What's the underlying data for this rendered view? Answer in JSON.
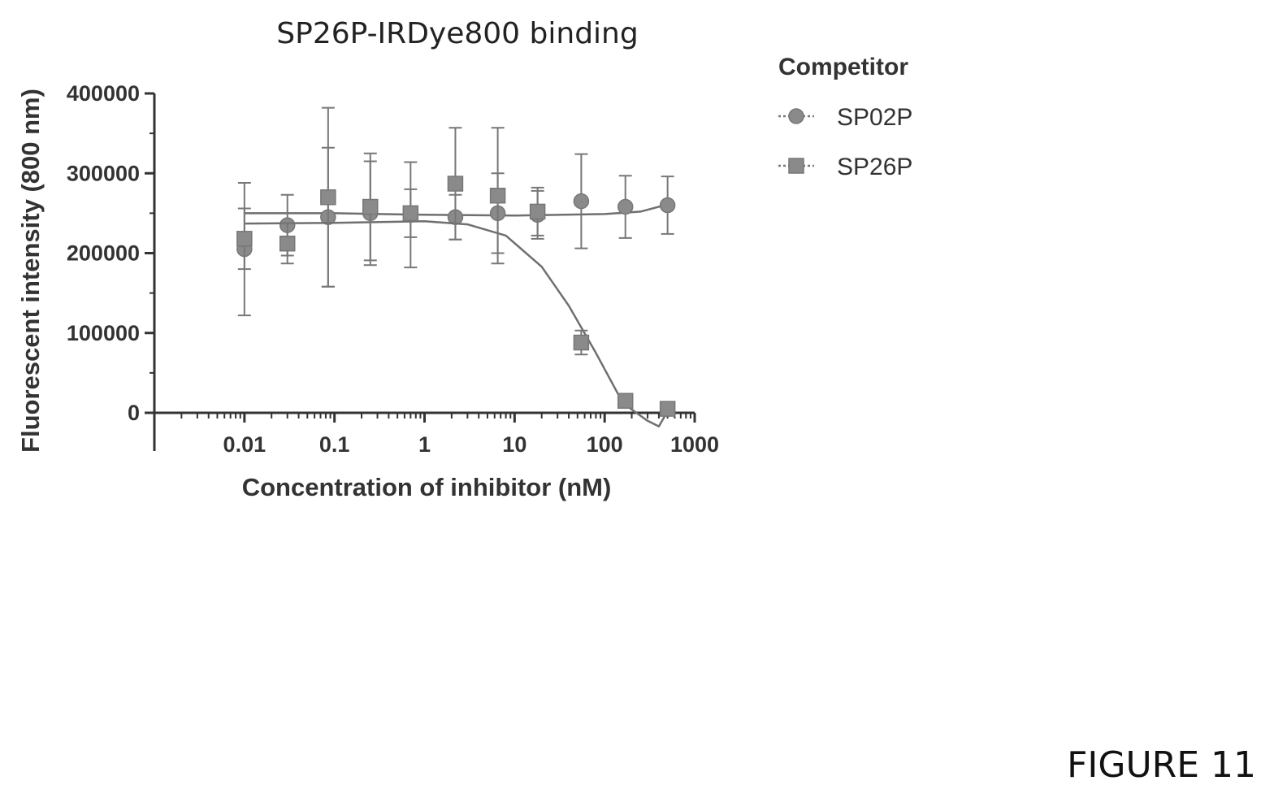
{
  "figure_label": "FIGURE 11",
  "chart_data": {
    "type": "scatter",
    "title": "SP26P-IRDye800 binding",
    "xlabel": "Concentration of inhibitor  (nM)",
    "ylabel": "Fluorescent intensity  (800 nm)",
    "x_scale": "log",
    "xlim": [
      0.001,
      1000
    ],
    "ylim": [
      0,
      400000
    ],
    "x_ticks": [
      0.01,
      0.1,
      1,
      10,
      100,
      1000
    ],
    "x_tick_labels": [
      "0.01",
      "0.1",
      "1",
      "10",
      "100",
      "1000"
    ],
    "y_ticks": [
      0,
      100000,
      200000,
      300000,
      400000
    ],
    "y_tick_labels": [
      "0",
      "100000",
      "200000",
      "300000",
      "400000"
    ],
    "grid": false,
    "legend_title": "Competitor",
    "legend_position": "right",
    "series": [
      {
        "name": "SP02P",
        "marker": "circle",
        "color": "#8a8a8a",
        "points": [
          {
            "x": 0.01,
            "y": 205000,
            "err": 83000
          },
          {
            "x": 0.03,
            "y": 235000,
            "err": 38000
          },
          {
            "x": 0.085,
            "y": 245000,
            "err": 87000
          },
          {
            "x": 0.25,
            "y": 250000,
            "err": 65000
          },
          {
            "x": 0.7,
            "y": 248000,
            "err": 66000
          },
          {
            "x": 2.2,
            "y": 245000,
            "err": 28000
          },
          {
            "x": 6.5,
            "y": 250000,
            "err": 50000
          },
          {
            "x": 18,
            "y": 248000,
            "err": 30000
          },
          {
            "x": 55,
            "y": 265000,
            "err": 59000
          },
          {
            "x": 170,
            "y": 258000,
            "err": 39000
          },
          {
            "x": 500,
            "y": 260000,
            "err": 36000
          }
        ],
        "fit": [
          {
            "x": 0.01,
            "y": 250000
          },
          {
            "x": 0.1,
            "y": 250000
          },
          {
            "x": 1,
            "y": 248000
          },
          {
            "x": 10,
            "y": 247000
          },
          {
            "x": 100,
            "y": 249000
          },
          {
            "x": 250,
            "y": 252000
          },
          {
            "x": 500,
            "y": 261000
          }
        ]
      },
      {
        "name": "SP26P",
        "marker": "square",
        "color": "#8a8a8a",
        "points": [
          {
            "x": 0.01,
            "y": 218000,
            "err": 38000
          },
          {
            "x": 0.03,
            "y": 212000,
            "err": 25000
          },
          {
            "x": 0.085,
            "y": 270000,
            "err": 112000
          },
          {
            "x": 0.25,
            "y": 258000,
            "err": 67000
          },
          {
            "x": 0.7,
            "y": 250000,
            "err": 30000
          },
          {
            "x": 2.2,
            "y": 287000,
            "err": 70000
          },
          {
            "x": 6.5,
            "y": 272000,
            "err": 85000
          },
          {
            "x": 18,
            "y": 252000,
            "err": 30000
          },
          {
            "x": 55,
            "y": 88000,
            "err": 15000
          },
          {
            "x": 170,
            "y": 15000,
            "err": 5000
          },
          {
            "x": 500,
            "y": 5000,
            "err": 3000
          }
        ],
        "fit": [
          {
            "x": 0.01,
            "y": 237000
          },
          {
            "x": 0.1,
            "y": 238000
          },
          {
            "x": 1,
            "y": 240000
          },
          {
            "x": 3,
            "y": 236000
          },
          {
            "x": 8,
            "y": 222000
          },
          {
            "x": 20,
            "y": 183000
          },
          {
            "x": 40,
            "y": 134000
          },
          {
            "x": 80,
            "y": 75000
          },
          {
            "x": 160,
            "y": 12000
          },
          {
            "x": 300,
            "y": -10000
          },
          {
            "x": 400,
            "y": -17000
          },
          {
            "x": 500,
            "y": 2000
          }
        ]
      }
    ]
  }
}
